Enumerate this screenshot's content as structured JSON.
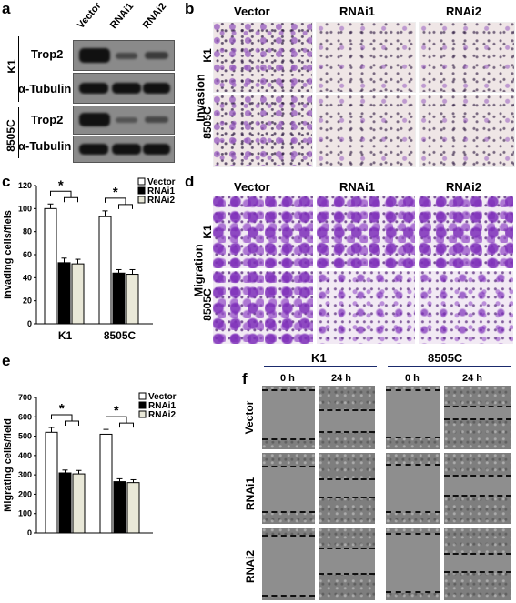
{
  "panels": {
    "a": "a",
    "b": "b",
    "c": "c",
    "d": "d",
    "e": "e",
    "f": "f"
  },
  "panel_a": {
    "lanes": [
      "Vector",
      "RNAi1",
      "RNAi2"
    ],
    "cell_lines": [
      "K1",
      "8505C"
    ],
    "proteins": [
      "Trop2",
      "α-Tubulin"
    ]
  },
  "panel_b": {
    "columns": [
      "Vector",
      "RNAi1",
      "RNAi2"
    ],
    "rows": [
      "K1",
      "8505C"
    ],
    "side_label": "Invasion"
  },
  "panel_d": {
    "columns": [
      "Vector",
      "RNAi1",
      "RNAi2"
    ],
    "rows": [
      "K1",
      "8505C"
    ],
    "side_label": "Migration"
  },
  "panel_f": {
    "groups": [
      "K1",
      "8505C"
    ],
    "times": [
      "0 h",
      "24 h"
    ],
    "rows": [
      "Vector",
      "RNAi1",
      "RNAi2"
    ]
  },
  "chart_data": [
    {
      "type": "bar",
      "panel": "c",
      "categories": [
        "K1",
        "8505C"
      ],
      "series": [
        {
          "name": "Vector",
          "values": [
            100,
            93
          ],
          "errors": [
            4,
            5
          ],
          "color": "#ffffff"
        },
        {
          "name": "RNAi1",
          "values": [
            53,
            44
          ],
          "errors": [
            4,
            3
          ],
          "color": "#000000"
        },
        {
          "name": "RNAi2",
          "values": [
            52,
            43
          ],
          "errors": [
            4,
            4
          ],
          "color": "#e9e8d8"
        }
      ],
      "ylabel": "Invading cells/fiels",
      "ylim": [
        0,
        120
      ],
      "yticks": [
        0,
        20,
        40,
        60,
        80,
        100,
        120
      ],
      "significance": "*",
      "grid": false,
      "legend": "top-right"
    },
    {
      "type": "bar",
      "panel": "e",
      "categories": [
        "K1",
        "8505C"
      ],
      "series": [
        {
          "name": "Vector",
          "values": [
            520,
            510
          ],
          "errors": [
            25,
            25
          ],
          "color": "#ffffff"
        },
        {
          "name": "RNAi1",
          "values": [
            310,
            265
          ],
          "errors": [
            15,
            15
          ],
          "color": "#000000"
        },
        {
          "name": "RNAi2",
          "values": [
            305,
            260
          ],
          "errors": [
            18,
            15
          ],
          "color": "#e9e8d8"
        }
      ],
      "ylabel": "Migrating cells/field",
      "ylim": [
        0,
        700
      ],
      "yticks": [
        0,
        100,
        200,
        300,
        400,
        500,
        600,
        700
      ],
      "significance": "*",
      "grid": false,
      "legend": "top-right"
    }
  ]
}
